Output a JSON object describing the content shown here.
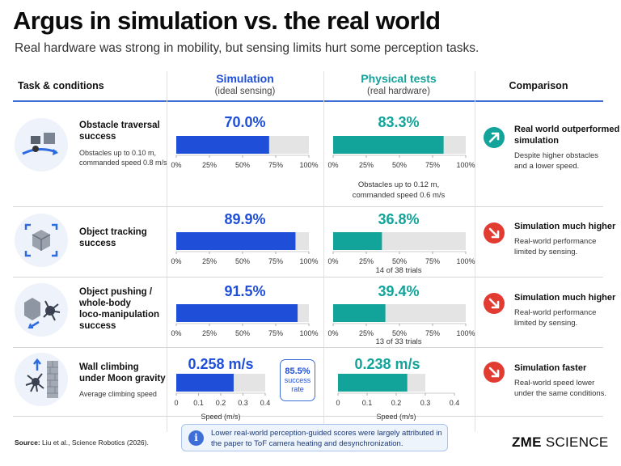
{
  "header": {
    "title": "Argus in simulation vs. the real world",
    "subtitle": "Real hardware was strong in mobility, but sensing limits hurt some perception tasks."
  },
  "columns": {
    "task": "Task & conditions",
    "simulation": {
      "title": "Simulation",
      "sub": "(ideal sensing)"
    },
    "physical": {
      "title": "Physical tests",
      "sub": "(real hardware)"
    },
    "comparison": "Comparison"
  },
  "colors": {
    "simulation": "#1f4fd8",
    "physical": "#12a39a",
    "track": "#e4e4e4",
    "outperformed": "#12a39a",
    "higher": "#e23b32"
  },
  "rows": [
    {
      "task_title": [
        "Obstacle traversal",
        "success"
      ],
      "task_note": [
        "Obstacles up to 0.10 m,",
        "commanded speed 0.8 m/s"
      ],
      "icon": "obstacle-traversal-icon",
      "sim_label": "70.0%",
      "phys_label": "83.3%",
      "phys_note": [
        "Obstacles up to 0.12 m,",
        "commanded speed 0.6 m/s"
      ],
      "cmp_icon": "arrow-up-right-icon",
      "cmp_title": [
        "Real world outperformed",
        "simulation"
      ],
      "cmp_text": [
        "Despite higher obstacles",
        "and a lower speed."
      ]
    },
    {
      "task_title": [
        "Object tracking",
        "success"
      ],
      "task_note": [],
      "icon": "object-tracking-icon",
      "sim_label": "89.9%",
      "phys_label": "36.8%",
      "phys_note": [
        "14 of 38 trials"
      ],
      "cmp_icon": "arrow-down-right-icon",
      "cmp_title": [
        "Simulation much higher"
      ],
      "cmp_text": [
        "Real-world performance",
        "limited by sensing."
      ]
    },
    {
      "task_title": [
        "Object pushing /",
        "whole-body",
        "loco-manipulation",
        "success"
      ],
      "task_note": [],
      "icon": "object-pushing-icon",
      "sim_label": "91.5%",
      "phys_label": "39.4%",
      "phys_note": [
        "13 of 33 trials"
      ],
      "cmp_icon": "arrow-down-right-icon",
      "cmp_title": [
        "Simulation much higher"
      ],
      "cmp_text": [
        "Real-world performance",
        "limited by sensing."
      ]
    },
    {
      "task_title": [
        "Wall climbing",
        "under Moon gravity"
      ],
      "task_note": [
        "Average climbing speed"
      ],
      "icon": "wall-climbing-icon",
      "sim_label": "0.258 m/s",
      "phys_label": "0.238 m/s",
      "phys_note": [],
      "badge_value": "85.5%",
      "badge_label": [
        "success",
        "rate"
      ],
      "cmp_icon": "arrow-down-right-icon",
      "cmp_title": [
        "Simulation faster"
      ],
      "cmp_text": [
        "Real-world speed lower",
        "under the same conditions."
      ]
    }
  ],
  "chart_data": [
    {
      "type": "bar",
      "title": "Obstacle traversal success",
      "categories": [
        "Simulation",
        "Physical tests"
      ],
      "values": [
        70.0,
        83.3
      ],
      "xlim": [
        0,
        100
      ],
      "ticks": [
        "0%",
        "25%",
        "50%",
        "75%",
        "100%"
      ],
      "tick_values": [
        0,
        25,
        50,
        75,
        100
      ]
    },
    {
      "type": "bar",
      "title": "Object tracking success",
      "categories": [
        "Simulation",
        "Physical tests"
      ],
      "values": [
        89.9,
        36.8
      ],
      "xlim": [
        0,
        100
      ],
      "ticks": [
        "0%",
        "25%",
        "50%",
        "75%",
        "100%"
      ],
      "tick_values": [
        0,
        25,
        50,
        75,
        100
      ]
    },
    {
      "type": "bar",
      "title": "Object pushing / whole-body loco-manipulation success",
      "categories": [
        "Simulation",
        "Physical tests"
      ],
      "values": [
        91.5,
        39.4
      ],
      "xlim": [
        0,
        100
      ],
      "ticks": [
        "0%",
        "25%",
        "50%",
        "75%",
        "100%"
      ],
      "tick_values": [
        0,
        25,
        50,
        75,
        100
      ]
    },
    {
      "type": "bar",
      "title": "Wall climbing under Moon gravity",
      "categories": [
        "Simulation",
        "Physical tests"
      ],
      "values": [
        0.258,
        0.238
      ],
      "xlim": [
        0,
        0.4
      ],
      "track_max": [
        0.4,
        0.3
      ],
      "ticks": [
        "0",
        "0.1",
        "0.2",
        "0.3",
        "0.4"
      ],
      "tick_values": [
        0,
        0.1,
        0.2,
        0.3,
        0.4
      ],
      "xlabel": "Speed (m/s)"
    }
  ],
  "footer": {
    "source_label": "Source:",
    "source_text": "Liu et al., Science Robotics (2026).",
    "info_text": "Lower real-world perception-guided scores were largely attributed in the paper to ToF camera heating and desynchronization.",
    "info_icon": "info-icon",
    "brand_bold": "ZME",
    "brand_rest": " SCIENCE"
  }
}
